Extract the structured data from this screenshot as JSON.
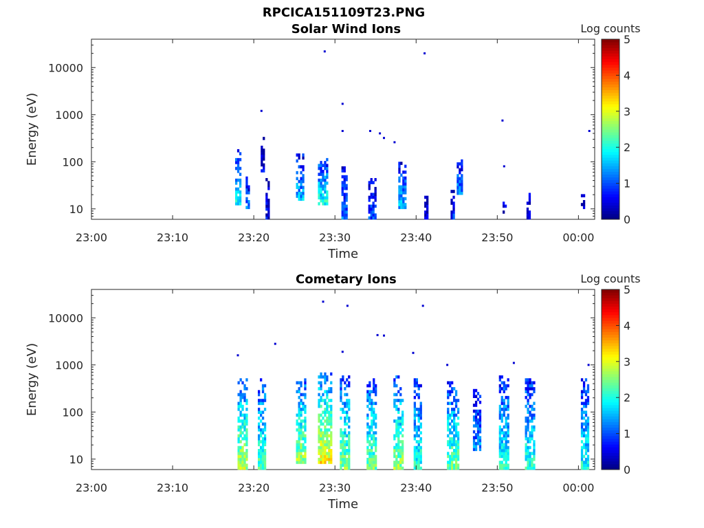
{
  "figure_title": "RPCICA151109T23.PNG",
  "chart_data": [
    {
      "type": "heatmap",
      "title": "Solar Wind Ions",
      "xlabel": "Time",
      "ylabel": "Energy (eV)",
      "yscale": "log",
      "ylim": [
        6,
        40000
      ],
      "xlim_minutes": [
        0,
        62
      ],
      "x_ticks": [
        {
          "min": 0,
          "label": "23:00"
        },
        {
          "min": 10,
          "label": "23:10"
        },
        {
          "min": 20,
          "label": "23:20"
        },
        {
          "min": 30,
          "label": "23:30"
        },
        {
          "min": 40,
          "label": "23:40"
        },
        {
          "min": 50,
          "label": "23:50"
        },
        {
          "min": 60,
          "label": "00:00"
        }
      ],
      "y_ticks": [
        {
          "value": 10,
          "label": "10"
        },
        {
          "value": 100,
          "label": "100"
        },
        {
          "value": 1000,
          "label": "1000"
        },
        {
          "value": 10000,
          "label": "10000"
        }
      ],
      "colorbar": {
        "label": "Log counts",
        "min": 0,
        "max": 5,
        "ticks": [
          "0",
          "1",
          "2",
          "3",
          "4",
          "5"
        ]
      },
      "clusters": [
        {
          "t": 18.0,
          "w": 0.6,
          "emin": 12,
          "emax": 180,
          "level": 1.8
        },
        {
          "t": 19.2,
          "w": 0.4,
          "emin": 10,
          "emax": 45,
          "level": 1.2
        },
        {
          "t": 21.0,
          "w": 0.3,
          "emin": 60,
          "emax": 300,
          "level": 0.6
        },
        {
          "t": 21.6,
          "w": 0.3,
          "emin": 6,
          "emax": 40,
          "level": 0.5
        },
        {
          "t": 25.7,
          "w": 1.0,
          "emin": 15,
          "emax": 150,
          "level": 1.5
        },
        {
          "t": 28.5,
          "w": 1.2,
          "emin": 12,
          "emax": 120,
          "level": 2.0
        },
        {
          "t": 31.1,
          "w": 0.6,
          "emin": 6,
          "emax": 80,
          "level": 1.1
        },
        {
          "t": 34.5,
          "w": 0.8,
          "emin": 6,
          "emax": 40,
          "level": 0.9
        },
        {
          "t": 38.2,
          "w": 0.8,
          "emin": 10,
          "emax": 100,
          "level": 1.5
        },
        {
          "t": 41.2,
          "w": 0.4,
          "emin": 6,
          "emax": 30,
          "level": 0.6
        },
        {
          "t": 44.5,
          "w": 0.5,
          "emin": 6,
          "emax": 25,
          "level": 0.8
        },
        {
          "t": 45.3,
          "w": 0.6,
          "emin": 20,
          "emax": 100,
          "level": 1.4
        },
        {
          "t": 50.8,
          "w": 0.3,
          "emin": 8,
          "emax": 15,
          "level": 0.5
        },
        {
          "t": 53.8,
          "w": 0.4,
          "emin": 6,
          "emax": 20,
          "level": 0.7
        },
        {
          "t": 60.5,
          "w": 0.4,
          "emin": 10,
          "emax": 25,
          "level": 0.6
        }
      ],
      "sparse_points": [
        {
          "t": 28.7,
          "e": 22000
        },
        {
          "t": 41.0,
          "e": 20000
        },
        {
          "t": 20.9,
          "e": 1200
        },
        {
          "t": 30.9,
          "e": 1700
        },
        {
          "t": 50.6,
          "e": 750
        },
        {
          "t": 30.9,
          "e": 450
        },
        {
          "t": 34.3,
          "e": 450
        },
        {
          "t": 35.5,
          "e": 400
        },
        {
          "t": 36.0,
          "e": 320
        },
        {
          "t": 37.3,
          "e": 260
        },
        {
          "t": 61.3,
          "e": 450
        },
        {
          "t": 50.8,
          "e": 80
        }
      ]
    },
    {
      "type": "heatmap",
      "title": "Cometary Ions",
      "xlabel": "Time",
      "ylabel": "Energy (eV)",
      "yscale": "log",
      "ylim": [
        6,
        40000
      ],
      "xlim_minutes": [
        0,
        62
      ],
      "x_ticks": [
        {
          "min": 0,
          "label": "23:00"
        },
        {
          "min": 10,
          "label": "23:10"
        },
        {
          "min": 20,
          "label": "23:20"
        },
        {
          "min": 30,
          "label": "23:30"
        },
        {
          "min": 40,
          "label": "23:40"
        },
        {
          "min": 50,
          "label": "23:50"
        },
        {
          "min": 60,
          "label": "00:00"
        }
      ],
      "y_ticks": [
        {
          "value": 10,
          "label": "10"
        },
        {
          "value": 100,
          "label": "100"
        },
        {
          "value": 1000,
          "label": "1000"
        },
        {
          "value": 10000,
          "label": "10000"
        }
      ],
      "colorbar": {
        "label": "Log counts",
        "min": 0,
        "max": 5,
        "ticks": [
          "0",
          "1",
          "2",
          "3",
          "4",
          "5"
        ]
      },
      "clusters": [
        {
          "t": 18.6,
          "w": 1.2,
          "emin": 6,
          "emax": 500,
          "level": 2.8
        },
        {
          "t": 21.0,
          "w": 1.0,
          "emin": 6,
          "emax": 500,
          "level": 2.3
        },
        {
          "t": 25.8,
          "w": 1.2,
          "emin": 8,
          "emax": 500,
          "level": 2.7
        },
        {
          "t": 28.7,
          "w": 1.6,
          "emin": 8,
          "emax": 600,
          "level": 3.2
        },
        {
          "t": 31.2,
          "w": 1.2,
          "emin": 6,
          "emax": 600,
          "level": 2.5
        },
        {
          "t": 34.5,
          "w": 1.2,
          "emin": 6,
          "emax": 500,
          "level": 2.4
        },
        {
          "t": 37.8,
          "w": 1.2,
          "emin": 6,
          "emax": 600,
          "level": 2.6
        },
        {
          "t": 40.2,
          "w": 1.0,
          "emin": 6,
          "emax": 500,
          "level": 2.1
        },
        {
          "t": 44.5,
          "w": 1.4,
          "emin": 6,
          "emax": 400,
          "level": 2.4
        },
        {
          "t": 47.5,
          "w": 1.0,
          "emin": 15,
          "emax": 300,
          "level": 1.3
        },
        {
          "t": 50.8,
          "w": 1.2,
          "emin": 6,
          "emax": 600,
          "level": 2.0
        },
        {
          "t": 54.0,
          "w": 1.2,
          "emin": 6,
          "emax": 500,
          "level": 2.1
        },
        {
          "t": 60.8,
          "w": 1.0,
          "emin": 6,
          "emax": 500,
          "level": 2.0
        }
      ],
      "sparse_points": [
        {
          "t": 28.5,
          "e": 22000
        },
        {
          "t": 31.5,
          "e": 18000
        },
        {
          "t": 40.8,
          "e": 18000
        },
        {
          "t": 35.2,
          "e": 4300
        },
        {
          "t": 36.0,
          "e": 4200
        },
        {
          "t": 22.6,
          "e": 2800
        },
        {
          "t": 30.9,
          "e": 1900
        },
        {
          "t": 39.6,
          "e": 1800
        },
        {
          "t": 18.0,
          "e": 1600
        },
        {
          "t": 61.2,
          "e": 1000
        },
        {
          "t": 43.8,
          "e": 1000
        },
        {
          "t": 52.0,
          "e": 1100
        }
      ]
    }
  ]
}
